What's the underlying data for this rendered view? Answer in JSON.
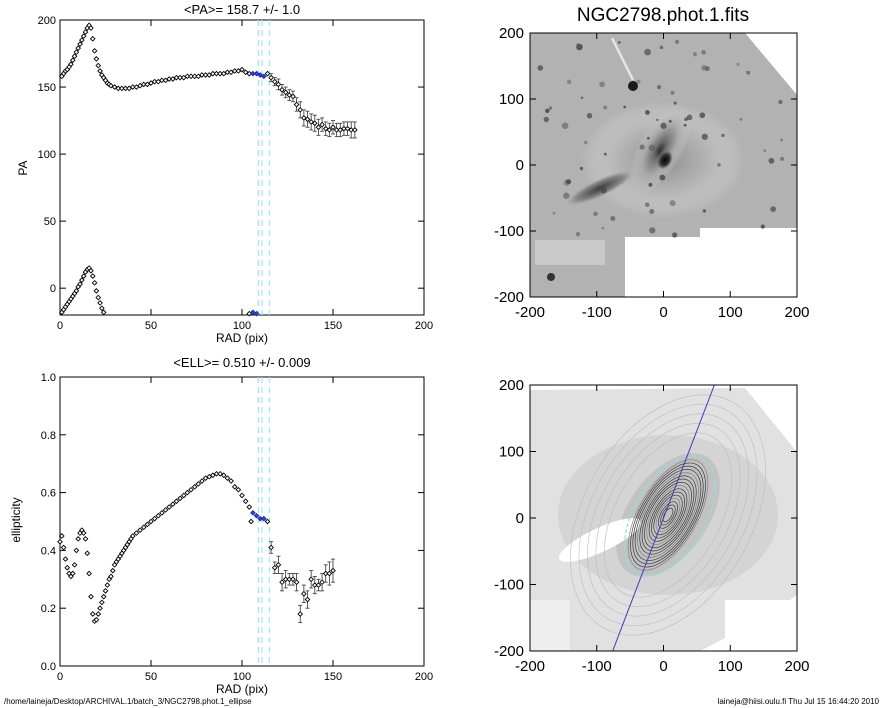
{
  "footer": {
    "left": "/home/laineja/Desktop/ARCHIVAL.1/batch_3/NGC2798.phot.1_ellipse",
    "right": "laineja@hiisi.oulu.fi  Thu Jul 15 16:44:20 2010"
  },
  "chart_data": [
    {
      "type": "scatter",
      "title": "<PA>= 158.7 +/-   1.0",
      "xlabel": "RAD (pix)",
      "ylabel": "PA",
      "xlim": [
        0,
        200
      ],
      "ylim": [
        -20,
        200
      ],
      "xticks": [
        0,
        50,
        100,
        150,
        200
      ],
      "yticks": [
        0,
        50,
        100,
        150,
        200
      ],
      "vlines": [
        109,
        111,
        115
      ],
      "highlight_x": [
        106,
        112
      ],
      "series": [
        {
          "points": [
            [
              1,
              158
            ],
            [
              2,
              160
            ],
            [
              3,
              162
            ],
            [
              4,
              163
            ],
            [
              5,
              165
            ],
            [
              6,
              167
            ],
            [
              7,
              170
            ],
            [
              8,
              173
            ],
            [
              9,
              176
            ],
            [
              10,
              179
            ],
            [
              11,
              182
            ],
            [
              12,
              185
            ],
            [
              13,
              188
            ],
            [
              14,
              191
            ],
            [
              15,
              194
            ],
            [
              16,
              196
            ],
            [
              17,
              194
            ],
            [
              18,
              186
            ],
            [
              19,
              177
            ],
            [
              20,
              171
            ],
            [
              21,
              166
            ],
            [
              22,
              162
            ],
            [
              23,
              159
            ],
            [
              24,
              157
            ],
            [
              25,
              155
            ],
            [
              26,
              153
            ],
            [
              27,
              152
            ],
            [
              28,
              151
            ],
            [
              30,
              150
            ],
            [
              32,
              149
            ],
            [
              34,
              149
            ],
            [
              36,
              149
            ],
            [
              38,
              149
            ],
            [
              40,
              150
            ],
            [
              42,
              150
            ],
            [
              44,
              151
            ],
            [
              46,
              152
            ],
            [
              48,
              152
            ],
            [
              50,
              153
            ],
            [
              52,
              154
            ],
            [
              54,
              154
            ],
            [
              56,
              155
            ],
            [
              58,
              155
            ],
            [
              60,
              156
            ],
            [
              62,
              156
            ],
            [
              64,
              157
            ],
            [
              66,
              157
            ],
            [
              68,
              157
            ],
            [
              70,
              158
            ],
            [
              72,
              158
            ],
            [
              74,
              158
            ],
            [
              76,
              158
            ],
            [
              78,
              159
            ],
            [
              80,
              159
            ],
            [
              82,
              159
            ],
            [
              84,
              160
            ],
            [
              86,
              160
            ],
            [
              88,
              160
            ],
            [
              90,
              160
            ],
            [
              92,
              161
            ],
            [
              94,
              161
            ],
            [
              96,
              162
            ],
            [
              98,
              162
            ],
            [
              100,
              163
            ],
            [
              102,
              161
            ],
            [
              104,
              160
            ],
            [
              106,
              160
            ],
            [
              108,
              160
            ],
            [
              110,
              159
            ],
            [
              112,
              158
            ],
            [
              114,
              160
            ],
            [
              116,
              157
            ],
            [
              118,
              154
            ],
            [
              120,
              152
            ],
            [
              122,
              148
            ],
            [
              124,
              146
            ],
            [
              126,
              144
            ],
            [
              128,
              143
            ],
            [
              130,
              137
            ],
            [
              132,
              133
            ],
            [
              134,
              127
            ],
            [
              136,
              126
            ],
            [
              138,
              124
            ],
            [
              140,
              123
            ],
            [
              142,
              120
            ],
            [
              144,
              122
            ],
            [
              146,
              119
            ],
            [
              148,
              118
            ],
            [
              150,
              120
            ],
            [
              152,
              118
            ],
            [
              154,
              118
            ],
            [
              156,
              119
            ],
            [
              158,
              119
            ],
            [
              160,
              118
            ],
            [
              162,
              118
            ]
          ],
          "errors": [
            [
              116,
              3
            ],
            [
              118,
              3
            ],
            [
              120,
              4
            ],
            [
              122,
              4
            ],
            [
              124,
              4
            ],
            [
              126,
              4
            ],
            [
              128,
              4
            ],
            [
              130,
              5
            ],
            [
              132,
              6
            ],
            [
              134,
              6
            ],
            [
              136,
              6
            ],
            [
              138,
              6
            ],
            [
              140,
              6
            ],
            [
              142,
              6
            ],
            [
              144,
              5
            ],
            [
              146,
              5
            ],
            [
              148,
              5
            ],
            [
              150,
              5
            ],
            [
              152,
              5
            ],
            [
              154,
              5
            ],
            [
              156,
              5
            ],
            [
              158,
              5
            ],
            [
              160,
              6
            ],
            [
              162,
              6
            ]
          ]
        },
        {
          "points": [
            [
              1,
              -18
            ],
            [
              2,
              -16
            ],
            [
              3,
              -14
            ],
            [
              4,
              -12
            ],
            [
              5,
              -10
            ],
            [
              6,
              -8
            ],
            [
              7,
              -6
            ],
            [
              8,
              -4
            ],
            [
              9,
              -2
            ],
            [
              10,
              1
            ],
            [
              11,
              3
            ],
            [
              12,
              6
            ],
            [
              13,
              9
            ],
            [
              14,
              12
            ],
            [
              15,
              14
            ],
            [
              16,
              15
            ],
            [
              17,
              13
            ],
            [
              18,
              9
            ],
            [
              19,
              4
            ],
            [
              20,
              -2
            ],
            [
              21,
              -7
            ],
            [
              22,
              -11
            ],
            [
              23,
              -15
            ],
            [
              24,
              -18
            ],
            [
              104,
              -19
            ],
            [
              106,
              -18
            ],
            [
              108,
              -19
            ]
          ]
        }
      ]
    },
    {
      "type": "scatter",
      "title": "<ELL>= 0.510 +/-  0.009",
      "xlabel": "RAD (pix)",
      "ylabel": "ellipticity",
      "xlim": [
        0,
        200
      ],
      "ylim": [
        0.0,
        1.0
      ],
      "xticks": [
        0,
        50,
        100,
        150,
        200
      ],
      "yticks": [
        0.0,
        0.2,
        0.4,
        0.6,
        0.8,
        1.0
      ],
      "vlines": [
        109,
        111,
        115
      ],
      "highlight_x": [
        106,
        112
      ],
      "series": [
        {
          "points": [
            [
              0,
              0.43
            ],
            [
              1,
              0.45
            ],
            [
              2,
              0.41
            ],
            [
              3,
              0.37
            ],
            [
              4,
              0.34
            ],
            [
              5,
              0.32
            ],
            [
              6,
              0.31
            ],
            [
              7,
              0.32
            ],
            [
              8,
              0.35
            ],
            [
              9,
              0.4
            ],
            [
              10,
              0.44
            ],
            [
              11,
              0.46
            ],
            [
              12,
              0.47
            ],
            [
              13,
              0.46
            ],
            [
              14,
              0.44
            ],
            [
              15,
              0.39
            ],
            [
              16,
              0.32
            ],
            [
              17,
              0.24
            ],
            [
              18,
              0.18
            ],
            [
              19,
              0.155
            ],
            [
              20,
              0.16
            ],
            [
              21,
              0.18
            ],
            [
              22,
              0.2
            ],
            [
              23,
              0.22
            ],
            [
              24,
              0.24
            ],
            [
              25,
              0.26
            ],
            [
              26,
              0.28
            ],
            [
              27,
              0.3
            ],
            [
              28,
              0.31
            ],
            [
              29,
              0.33
            ],
            [
              30,
              0.35
            ],
            [
              31,
              0.36
            ],
            [
              32,
              0.37
            ],
            [
              33,
              0.38
            ],
            [
              34,
              0.39
            ],
            [
              35,
              0.4
            ],
            [
              36,
              0.41
            ],
            [
              37,
              0.42
            ],
            [
              38,
              0.43
            ],
            [
              39,
              0.44
            ],
            [
              40,
              0.45
            ],
            [
              42,
              0.46
            ],
            [
              44,
              0.47
            ],
            [
              46,
              0.48
            ],
            [
              48,
              0.49
            ],
            [
              50,
              0.5
            ],
            [
              52,
              0.51
            ],
            [
              54,
              0.52
            ],
            [
              56,
              0.53
            ],
            [
              58,
              0.54
            ],
            [
              60,
              0.55
            ],
            [
              62,
              0.56
            ],
            [
              64,
              0.57
            ],
            [
              66,
              0.58
            ],
            [
              68,
              0.59
            ],
            [
              70,
              0.6
            ],
            [
              72,
              0.61
            ],
            [
              74,
              0.62
            ],
            [
              76,
              0.63
            ],
            [
              78,
              0.64
            ],
            [
              80,
              0.65
            ],
            [
              82,
              0.655
            ],
            [
              84,
              0.66
            ],
            [
              86,
              0.665
            ],
            [
              88,
              0.665
            ],
            [
              90,
              0.66
            ],
            [
              92,
              0.65
            ],
            [
              94,
              0.64
            ],
            [
              96,
              0.62
            ],
            [
              98,
              0.61
            ],
            [
              100,
              0.59
            ],
            [
              102,
              0.57
            ],
            [
              104,
              0.55
            ],
            [
              105,
              0.5
            ],
            [
              106,
              0.53
            ],
            [
              108,
              0.52
            ],
            [
              110,
              0.51
            ],
            [
              112,
              0.51
            ],
            [
              114,
              0.5
            ],
            [
              116,
              0.41
            ],
            [
              118,
              0.34
            ],
            [
              120,
              0.35
            ],
            [
              122,
              0.29
            ],
            [
              124,
              0.3
            ],
            [
              126,
              0.3
            ],
            [
              128,
              0.3
            ],
            [
              130,
              0.29
            ],
            [
              132,
              0.18
            ],
            [
              134,
              0.25
            ],
            [
              136,
              0.23
            ],
            [
              138,
              0.3
            ],
            [
              140,
              0.28
            ],
            [
              142,
              0.28
            ],
            [
              144,
              0.29
            ],
            [
              146,
              0.32
            ],
            [
              148,
              0.32
            ],
            [
              150,
              0.33
            ]
          ],
          "errors": [
            [
              116,
              0.02
            ],
            [
              118,
              0.02
            ],
            [
              120,
              0.03
            ],
            [
              122,
              0.03
            ],
            [
              124,
              0.03
            ],
            [
              126,
              0.02
            ],
            [
              128,
              0.02
            ],
            [
              130,
              0.03
            ],
            [
              132,
              0.03
            ],
            [
              134,
              0.03
            ],
            [
              136,
              0.03
            ],
            [
              138,
              0.03
            ],
            [
              140,
              0.03
            ],
            [
              142,
              0.02
            ],
            [
              144,
              0.03
            ],
            [
              146,
              0.03
            ],
            [
              148,
              0.04
            ],
            [
              150,
              0.04
            ]
          ]
        }
      ]
    },
    {
      "type": "heatmap",
      "title": "NGC2798.phot.1.fits",
      "xlim": [
        -200,
        200
      ],
      "ylim": [
        -200,
        200
      ],
      "xticks": [
        -200,
        -100,
        0,
        100,
        200
      ],
      "yticks": [
        -200,
        -100,
        0,
        100,
        200
      ]
    },
    {
      "type": "heatmap",
      "title": "",
      "xlim": [
        -200,
        200
      ],
      "ylim": [
        -200,
        200
      ],
      "xticks": [
        -200,
        -100,
        0,
        100,
        200
      ],
      "yticks": [
        -200,
        -100,
        0,
        100,
        200
      ],
      "line": [
        [
          -80,
          -210
        ],
        [
          80,
          210
        ]
      ]
    }
  ]
}
